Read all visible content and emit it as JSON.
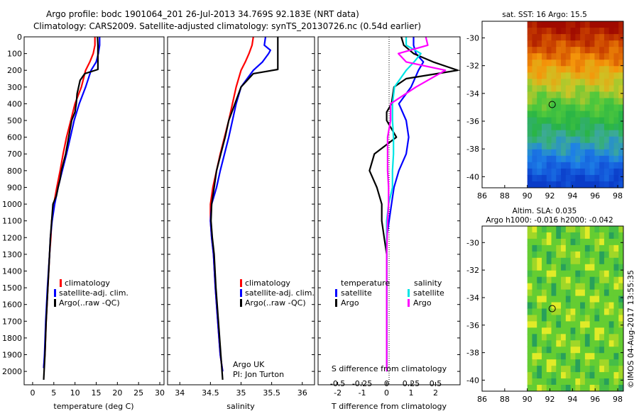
{
  "header": {
    "line1": "Argo profile: bodc 1901064_201 26-Jul-2013 34.769S 92.183E (NRT data)",
    "line2": "Climatology: CARS2009. Satellite-adjusted climatology: synTS_20130726.nc (0.54d earlier)"
  },
  "footer_stamp": "©IMOS 04-Aug-2017 13:55:35",
  "colors": {
    "clim": "#ff0000",
    "sat": "#0000ff",
    "argo": "#000000",
    "sat_s": "#00e5e5",
    "argo_s": "#ff00ff"
  },
  "chart_data": [
    {
      "id": "temperature",
      "type": "line",
      "xlabel": "temperature (deg C)",
      "ylabel": "",
      "xlim": [
        -2,
        31
      ],
      "ylim": [
        2080,
        0
      ],
      "xticks": [
        "0",
        "5",
        "10",
        "15",
        "20",
        "25",
        "30"
      ],
      "yticks": [
        "0",
        "100",
        "200",
        "300",
        "400",
        "500",
        "600",
        "700",
        "800",
        "900",
        "1000",
        "1100",
        "1200",
        "1300",
        "1400",
        "1500",
        "1600",
        "1700",
        "1800",
        "1900",
        "2000"
      ],
      "legend": [
        "climatology",
        "satellite-adj. clim.",
        "Argo(..raw -QC)"
      ],
      "series": [
        {
          "name": "climatology",
          "points": [
            [
              14.7,
              0
            ],
            [
              14.7,
              50
            ],
            [
              14.3,
              100
            ],
            [
              13.5,
              150
            ],
            [
              12.5,
              200
            ],
            [
              11.5,
              300
            ],
            [
              10.0,
              400
            ],
            [
              9.0,
              500
            ],
            [
              8.0,
              600
            ],
            [
              7.2,
              700
            ],
            [
              6.5,
              800
            ],
            [
              5.7,
              900
            ],
            [
              5.0,
              1000
            ],
            [
              4.5,
              1100
            ],
            [
              4.3,
              1200
            ],
            [
              4.0,
              1300
            ],
            [
              3.6,
              1500
            ],
            [
              3.2,
              1700
            ],
            [
              2.9,
              1900
            ],
            [
              2.6,
              1980
            ]
          ]
        },
        {
          "name": "satellite-adj. clim.",
          "points": [
            [
              15.8,
              0
            ],
            [
              15.8,
              50
            ],
            [
              15.5,
              100
            ],
            [
              15.0,
              150
            ],
            [
              13.8,
              200
            ],
            [
              12.5,
              300
            ],
            [
              11.0,
              400
            ],
            [
              9.8,
              500
            ],
            [
              8.9,
              600
            ],
            [
              8.0,
              700
            ],
            [
              7.0,
              800
            ],
            [
              6.0,
              900
            ],
            [
              5.2,
              1000
            ],
            [
              4.6,
              1100
            ],
            [
              4.2,
              1200
            ],
            [
              4.0,
              1300
            ],
            [
              3.5,
              1500
            ],
            [
              3.1,
              1700
            ],
            [
              2.8,
              1900
            ],
            [
              2.6,
              1980
            ]
          ]
        },
        {
          "name": "Argo(..raw -QC)",
          "points": [
            [
              15.3,
              0
            ],
            [
              15.4,
              50
            ],
            [
              15.4,
              100
            ],
            [
              15.4,
              150
            ],
            [
              15.4,
              195
            ],
            [
              12.3,
              220
            ],
            [
              11.2,
              260
            ],
            [
              10.5,
              340
            ],
            [
              10.3,
              400
            ],
            [
              10.0,
              450
            ],
            [
              9.2,
              500
            ],
            [
              8.5,
              600
            ],
            [
              7.8,
              700
            ],
            [
              7.2,
              760
            ],
            [
              6.8,
              800
            ],
            [
              6.5,
              850
            ],
            [
              6.0,
              900
            ],
            [
              5.6,
              950
            ],
            [
              4.8,
              1000
            ],
            [
              4.5,
              1100
            ],
            [
              4.2,
              1200
            ],
            [
              4.0,
              1300
            ],
            [
              3.6,
              1500
            ],
            [
              3.2,
              1700
            ],
            [
              2.9,
              1900
            ],
            [
              2.7,
              2000
            ],
            [
              2.6,
              2050
            ]
          ]
        }
      ]
    },
    {
      "id": "salinity",
      "type": "line",
      "xlabel": "salinity",
      "xlim": [
        33.8,
        36.2
      ],
      "ylim": [
        2080,
        0
      ],
      "xticks": [
        "34",
        "34.5",
        "35",
        "35.5",
        "36"
      ],
      "legend": [
        "climatology",
        "satellite-adj. clim.",
        "Argo(..raw -QC)"
      ],
      "annotation": [
        "Argo UK",
        "PI: Jon Turton"
      ],
      "series": [
        {
          "name": "climatology",
          "points": [
            [
              35.2,
              0
            ],
            [
              35.18,
              50
            ],
            [
              35.13,
              100
            ],
            [
              35.07,
              150
            ],
            [
              35.0,
              200
            ],
            [
              34.92,
              300
            ],
            [
              34.86,
              400
            ],
            [
              34.8,
              500
            ],
            [
              34.73,
              600
            ],
            [
              34.66,
              700
            ],
            [
              34.6,
              800
            ],
            [
              34.54,
              900
            ],
            [
              34.5,
              1000
            ],
            [
              34.5,
              1100
            ],
            [
              34.52,
              1200
            ],
            [
              34.55,
              1300
            ],
            [
              34.58,
              1500
            ],
            [
              34.62,
              1700
            ],
            [
              34.66,
              1900
            ],
            [
              34.7,
              2000
            ]
          ]
        },
        {
          "name": "satellite-adj. clim.",
          "points": [
            [
              35.4,
              0
            ],
            [
              35.38,
              50
            ],
            [
              35.48,
              80
            ],
            [
              35.45,
              100
            ],
            [
              35.35,
              150
            ],
            [
              35.2,
              200
            ],
            [
              35.0,
              300
            ],
            [
              34.92,
              400
            ],
            [
              34.86,
              500
            ],
            [
              34.8,
              600
            ],
            [
              34.73,
              700
            ],
            [
              34.66,
              800
            ],
            [
              34.6,
              900
            ],
            [
              34.52,
              1000
            ],
            [
              34.5,
              1100
            ],
            [
              34.52,
              1200
            ],
            [
              34.55,
              1300
            ],
            [
              34.58,
              1500
            ],
            [
              34.62,
              1700
            ],
            [
              34.66,
              1900
            ],
            [
              34.7,
              2000
            ]
          ]
        },
        {
          "name": "Argo(..raw -QC)",
          "points": [
            [
              35.6,
              0
            ],
            [
              35.6,
              50
            ],
            [
              35.6,
              195
            ],
            [
              35.2,
              220
            ],
            [
              35.0,
              300
            ],
            [
              34.9,
              400
            ],
            [
              34.8,
              500
            ],
            [
              34.74,
              600
            ],
            [
              34.67,
              700
            ],
            [
              34.6,
              800
            ],
            [
              34.56,
              900
            ],
            [
              34.52,
              1000
            ],
            [
              34.51,
              1100
            ],
            [
              34.53,
              1200
            ],
            [
              34.56,
              1300
            ],
            [
              34.59,
              1500
            ],
            [
              34.63,
              1700
            ],
            [
              34.67,
              1900
            ],
            [
              34.7,
              2050
            ]
          ]
        }
      ]
    },
    {
      "id": "difference",
      "type": "line",
      "xlabel": "T difference from climatology",
      "xlabel2": "S difference from climatology",
      "xlim": [
        -2.8,
        3.0
      ],
      "ylim": [
        2080,
        0
      ],
      "xticks": [
        "-2",
        "-1",
        "0",
        "1",
        "2"
      ],
      "xticks2": [
        "-0.5",
        "-0.25",
        "0",
        "0.25",
        "0.5"
      ],
      "legend_headers": [
        "temperature",
        "salinity"
      ],
      "legend": [
        "satellite",
        "Argo",
        "satellite",
        "Argo"
      ],
      "series": [
        {
          "name": "temperature satellite",
          "points": [
            [
              1.1,
              0
            ],
            [
              1.1,
              50
            ],
            [
              1.2,
              100
            ],
            [
              1.5,
              150
            ],
            [
              1.3,
              200
            ],
            [
              1.0,
              300
            ],
            [
              0.5,
              400
            ],
            [
              0.8,
              500
            ],
            [
              0.9,
              600
            ],
            [
              0.8,
              700
            ],
            [
              0.5,
              800
            ],
            [
              0.3,
              900
            ],
            [
              0.2,
              1000
            ],
            [
              0.1,
              1100
            ],
            [
              0.0,
              1200
            ],
            [
              0.0,
              2000
            ]
          ]
        },
        {
          "name": "temperature Argo",
          "points": [
            [
              0.6,
              0
            ],
            [
              0.7,
              50
            ],
            [
              1.1,
              100
            ],
            [
              1.9,
              150
            ],
            [
              2.9,
              200
            ],
            [
              0.8,
              250
            ],
            [
              0.3,
              300
            ],
            [
              0.2,
              400
            ],
            [
              0.0,
              450
            ],
            [
              0.0,
              500
            ],
            [
              0.4,
              600
            ],
            [
              -0.5,
              700
            ],
            [
              -0.7,
              800
            ],
            [
              -0.4,
              900
            ],
            [
              -0.2,
              1000
            ],
            [
              -0.2,
              1100
            ],
            [
              -0.1,
              1200
            ],
            [
              0.0,
              1300
            ],
            [
              0.0,
              2000
            ]
          ]
        },
        {
          "name": "salinity satellite",
          "points": [
            [
              0.2,
              0
            ],
            [
              0.2,
              50
            ],
            [
              0.35,
              100
            ],
            [
              0.28,
              150
            ],
            [
              0.2,
              200
            ],
            [
              0.08,
              300
            ],
            [
              0.06,
              400
            ],
            [
              0.06,
              500
            ],
            [
              0.07,
              600
            ],
            [
              0.07,
              700
            ],
            [
              0.06,
              800
            ],
            [
              0.06,
              900
            ],
            [
              0.02,
              1000
            ],
            [
              0.0,
              1100
            ],
            [
              0.0,
              1300
            ],
            [
              0.0,
              2000
            ]
          ]
        },
        {
          "name": "salinity Argo",
          "points": [
            [
              0.4,
              0
            ],
            [
              0.42,
              50
            ],
            [
              0.12,
              100
            ],
            [
              0.2,
              150
            ],
            [
              0.6,
              200
            ],
            [
              0.3,
              300
            ],
            [
              0.04,
              400
            ],
            [
              0.04,
              500
            ],
            [
              0.01,
              600
            ],
            [
              0.01,
              700
            ],
            [
              0.01,
              800
            ],
            [
              0.02,
              900
            ],
            [
              0.02,
              1000
            ],
            [
              0.01,
              1100
            ],
            [
              0.0,
              1300
            ],
            [
              0.0,
              2000
            ]
          ]
        }
      ]
    },
    {
      "id": "sst_map",
      "type": "heatmap",
      "title": "sat. SST: 16 Argo: 15.5",
      "xlim": [
        86,
        98.5
      ],
      "ylim": [
        -40.8,
        -28.8
      ],
      "xticks": [
        "86",
        "88",
        "90",
        "92",
        "94",
        "96",
        "98"
      ],
      "yticks": [
        "-30",
        "-32",
        "-34",
        "-36",
        "-38",
        "-40"
      ],
      "marker": [
        92.2,
        -34.8
      ]
    },
    {
      "id": "sla_map",
      "type": "heatmap",
      "title": "Altim. SLA: 0.035",
      "subtitle": "Argo h1000: -0.016 h2000: -0.042",
      "xlim": [
        86,
        98.5
      ],
      "ylim": [
        -40.8,
        -28.8
      ],
      "xticks": [
        "86",
        "88",
        "90",
        "92",
        "94",
        "96",
        "98"
      ],
      "yticks": [
        "-30",
        "-32",
        "-34",
        "-36",
        "-38",
        "-40"
      ],
      "marker": [
        92.2,
        -34.8
      ]
    }
  ]
}
